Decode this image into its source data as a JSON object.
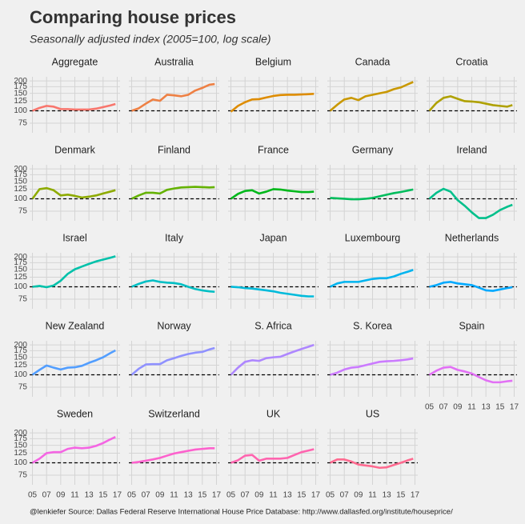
{
  "chart_data": {
    "type": "line",
    "title": "Comparing house prices",
    "subtitle": "Seasonally adjusted index (2005=100, log scale)",
    "caption": "@lenkiefer Source: Dallas Federal Reserve International House Price Database: http://www.dallasfed.org/institute/houseprice/",
    "log_y": true,
    "grid": true,
    "hline": 100,
    "x": [
      2005,
      2006,
      2007,
      2008,
      2009,
      2010,
      2011,
      2012,
      2013,
      2014,
      2015,
      2016,
      2016.75
    ],
    "xlim": [
      2004.6,
      2017.4
    ],
    "xticks": [
      {
        "value": 2005,
        "label": "05"
      },
      {
        "value": 2007,
        "label": "07"
      },
      {
        "value": 2009,
        "label": "09"
      },
      {
        "value": 2011,
        "label": "11"
      },
      {
        "value": 2013,
        "label": "13"
      },
      {
        "value": 2015,
        "label": "15"
      },
      {
        "value": 2017,
        "label": "17"
      }
    ],
    "ylim": [
      60,
      220
    ],
    "yticks": [
      75,
      100,
      125,
      150,
      175,
      200
    ],
    "series": [
      {
        "name": "Aggregate",
        "color": "#F8766D",
        "values": [
          100,
          107,
          112,
          110,
          104,
          104,
          103,
          103,
          103,
          105,
          109,
          113,
          117
        ]
      },
      {
        "name": "Australia",
        "color": "#EE8044",
        "values": [
          100,
          106,
          118,
          130,
          126,
          145,
          143,
          140,
          145,
          160,
          170,
          183,
          186
        ]
      },
      {
        "name": "Belgium",
        "color": "#DE8C00",
        "values": [
          98,
          112,
          122,
          130,
          131,
          136,
          141,
          144,
          145,
          145,
          146,
          147,
          148
        ]
      },
      {
        "name": "Canada",
        "color": "#C99800",
        "values": [
          100,
          115,
          130,
          135,
          128,
          140,
          145,
          150,
          155,
          165,
          172,
          185,
          195
        ]
      },
      {
        "name": "Croatia",
        "color": "#AFA100",
        "values": [
          100,
          120,
          135,
          140,
          132,
          125,
          124,
          122,
          118,
          114,
          112,
          110,
          114
        ]
      },
      {
        "name": "Denmark",
        "color": "#8EAB00",
        "values": [
          100,
          125,
          128,
          122,
          108,
          110,
          107,
          103,
          105,
          108,
          113,
          118,
          122
        ]
      },
      {
        "name": "Finland",
        "color": "#64B200",
        "values": [
          100,
          108,
          115,
          115,
          113,
          123,
          127,
          130,
          131,
          132,
          131,
          130,
          131
        ]
      },
      {
        "name": "France",
        "color": "#00B81B",
        "values": [
          100,
          112,
          120,
          122,
          113,
          118,
          125,
          124,
          121,
          119,
          117,
          117,
          118
        ]
      },
      {
        "name": "Germany",
        "color": "#00BD5C",
        "values": [
          102,
          101,
          100,
          99,
          99,
          100,
          102,
          106,
          110,
          114,
          117,
          121,
          124
        ]
      },
      {
        "name": "Ireland",
        "color": "#00C08B",
        "values": [
          100,
          115,
          126,
          118,
          97,
          85,
          73,
          64,
          64,
          69,
          77,
          83,
          87
        ]
      },
      {
        "name": "Israel",
        "color": "#00C1AA",
        "values": [
          100,
          102,
          99,
          103,
          115,
          135,
          150,
          160,
          170,
          180,
          188,
          196,
          203
        ]
      },
      {
        "name": "Italy",
        "color": "#00BFC4",
        "values": [
          100,
          107,
          113,
          116,
          112,
          110,
          109,
          106,
          100,
          95,
          92,
          90,
          89
        ]
      },
      {
        "name": "Japan",
        "color": "#00BBDB",
        "values": [
          100,
          99,
          97,
          96,
          94,
          92,
          90,
          87,
          85,
          83,
          81,
          80,
          80
        ]
      },
      {
        "name": "Luxembourg",
        "color": "#00B4EF",
        "values": [
          100,
          108,
          112,
          112,
          112,
          116,
          120,
          122,
          122,
          127,
          135,
          142,
          148
        ]
      },
      {
        "name": "Netherlands",
        "color": "#00A9FF",
        "values": [
          100,
          104,
          110,
          112,
          108,
          106,
          104,
          98,
          92,
          91,
          94,
          97,
          99
        ]
      },
      {
        "name": "New Zealand",
        "color": "#529EFF",
        "values": [
          100,
          112,
          124,
          118,
          113,
          118,
          119,
          123,
          132,
          140,
          150,
          165,
          176
        ]
      },
      {
        "name": "Norway",
        "color": "#8F91FF",
        "values": [
          100,
          115,
          127,
          128,
          128,
          140,
          147,
          155,
          162,
          167,
          170,
          180,
          186
        ]
      },
      {
        "name": "S. Africa",
        "color": "#AE87FF",
        "values": [
          100,
          118,
          135,
          140,
          138,
          147,
          150,
          152,
          162,
          172,
          182,
          192,
          200
        ]
      },
      {
        "name": "S. Korea",
        "color": "#CB7BFF",
        "values": [
          100,
          105,
          113,
          118,
          120,
          125,
          130,
          135,
          137,
          138,
          140,
          143,
          146
        ]
      },
      {
        "name": "Spain",
        "color": "#E270F5",
        "values": [
          100,
          110,
          118,
          120,
          112,
          108,
          103,
          95,
          88,
          84,
          84,
          86,
          87
        ]
      },
      {
        "name": "Sweden",
        "color": "#F465E3",
        "values": [
          100,
          110,
          125,
          128,
          128,
          138,
          142,
          140,
          142,
          148,
          158,
          172,
          182
        ]
      },
      {
        "name": "Switzerland",
        "color": "#FD61CD",
        "values": [
          100,
          102,
          105,
          108,
          112,
          118,
          124,
          128,
          132,
          136,
          138,
          140,
          140
        ]
      },
      {
        "name": "UK",
        "color": "#FF64AF",
        "values": [
          100,
          106,
          118,
          120,
          105,
          110,
          110,
          110,
          112,
          120,
          128,
          133,
          137
        ]
      },
      {
        "name": "US",
        "color": "#FF6A90",
        "values": [
          100,
          108,
          108,
          103,
          96,
          94,
          92,
          89,
          90,
          95,
          100,
          106,
          110
        ]
      }
    ]
  }
}
